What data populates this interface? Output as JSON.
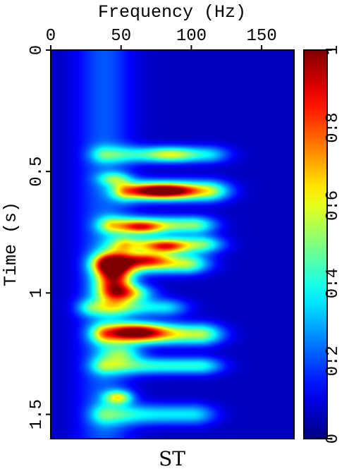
{
  "chart_data": {
    "type": "heatmap",
    "title": "",
    "caption": "ST",
    "xlabel": "Frequency (Hz)",
    "ylabel": "Time (s)",
    "x_axis_position": "top",
    "y_axis_inverted": true,
    "xlim": [
      0,
      173
    ],
    "ylim": [
      0,
      1.6
    ],
    "x_ticks": [
      0,
      50,
      100,
      150
    ],
    "x_tick_labels": [
      "0",
      "50",
      "100",
      "150"
    ],
    "y_ticks": [
      0,
      0.5,
      1,
      1.5
    ],
    "y_tick_labels": [
      "0",
      "0.5",
      "1",
      "1.5"
    ],
    "colormap": "jet",
    "colorbar": {
      "range": [
        0,
        1
      ],
      "ticks": [
        0,
        0.2,
        0.4,
        0.6,
        0.8,
        1
      ],
      "tick_labels": [
        "0",
        "0.2",
        "0.4",
        "0.6",
        "0.8",
        "1"
      ],
      "position": "right"
    },
    "background_value": 0.06,
    "components": [
      {
        "kind": "ridge",
        "t0": 0.0,
        "t1": 1.6,
        "f": 38,
        "fw": 14,
        "a": 0.15
      },
      {
        "kind": "band",
        "t": 0.58,
        "tw": 0.03,
        "f0": 55,
        "f1": 110,
        "a": 0.5
      },
      {
        "kind": "band",
        "t": 0.43,
        "tw": 0.025,
        "f0": 40,
        "f1": 110,
        "a": 0.3
      },
      {
        "kind": "band",
        "t": 0.72,
        "tw": 0.025,
        "f0": 45,
        "f1": 100,
        "a": 0.45
      },
      {
        "kind": "band",
        "t": 0.8,
        "tw": 0.025,
        "f0": 55,
        "f1": 105,
        "a": 0.45
      },
      {
        "kind": "band",
        "t": 0.88,
        "tw": 0.028,
        "f0": 40,
        "f1": 95,
        "a": 0.5
      },
      {
        "kind": "band",
        "t": 1.17,
        "tw": 0.03,
        "f0": 40,
        "f1": 105,
        "a": 0.5
      },
      {
        "kind": "band",
        "t": 1.3,
        "tw": 0.025,
        "f0": 40,
        "f1": 105,
        "a": 0.35
      },
      {
        "kind": "band",
        "t": 1.5,
        "tw": 0.03,
        "f0": 40,
        "f1": 100,
        "a": 0.3
      },
      {
        "kind": "band",
        "t": 1.06,
        "tw": 0.025,
        "f0": 30,
        "f1": 80,
        "a": 0.3
      },
      {
        "kind": "blob",
        "t": 0.58,
        "f": 80,
        "tw": 0.02,
        "fw": 16,
        "a": 0.65
      },
      {
        "kind": "blob",
        "t": 0.73,
        "f": 65,
        "tw": 0.018,
        "fw": 10,
        "a": 0.4
      },
      {
        "kind": "blob",
        "t": 0.81,
        "f": 82,
        "tw": 0.018,
        "fw": 10,
        "a": 0.4
      },
      {
        "kind": "blob",
        "t": 0.86,
        "f": 68,
        "tw": 0.02,
        "fw": 12,
        "a": 0.4
      },
      {
        "kind": "blob",
        "t": 0.93,
        "f": 45,
        "tw": 0.07,
        "fw": 9,
        "a": 0.75
      },
      {
        "kind": "blob",
        "t": 1.0,
        "f": 55,
        "tw": 0.025,
        "fw": 12,
        "a": 0.45
      },
      {
        "kind": "blob",
        "t": 1.16,
        "f": 62,
        "tw": 0.025,
        "fw": 14,
        "a": 0.55
      },
      {
        "kind": "blob",
        "t": 1.43,
        "f": 48,
        "tw": 0.02,
        "fw": 7,
        "a": 0.45
      },
      {
        "kind": "blob",
        "t": 0.43,
        "f": 85,
        "tw": 0.02,
        "fw": 12,
        "a": 0.25
      },
      {
        "kind": "blob",
        "t": 0.53,
        "f": 45,
        "tw": 0.02,
        "fw": 8,
        "a": 0.3
      },
      {
        "kind": "blob",
        "t": 1.25,
        "f": 50,
        "tw": 0.025,
        "fw": 10,
        "a": 0.3
      }
    ]
  }
}
